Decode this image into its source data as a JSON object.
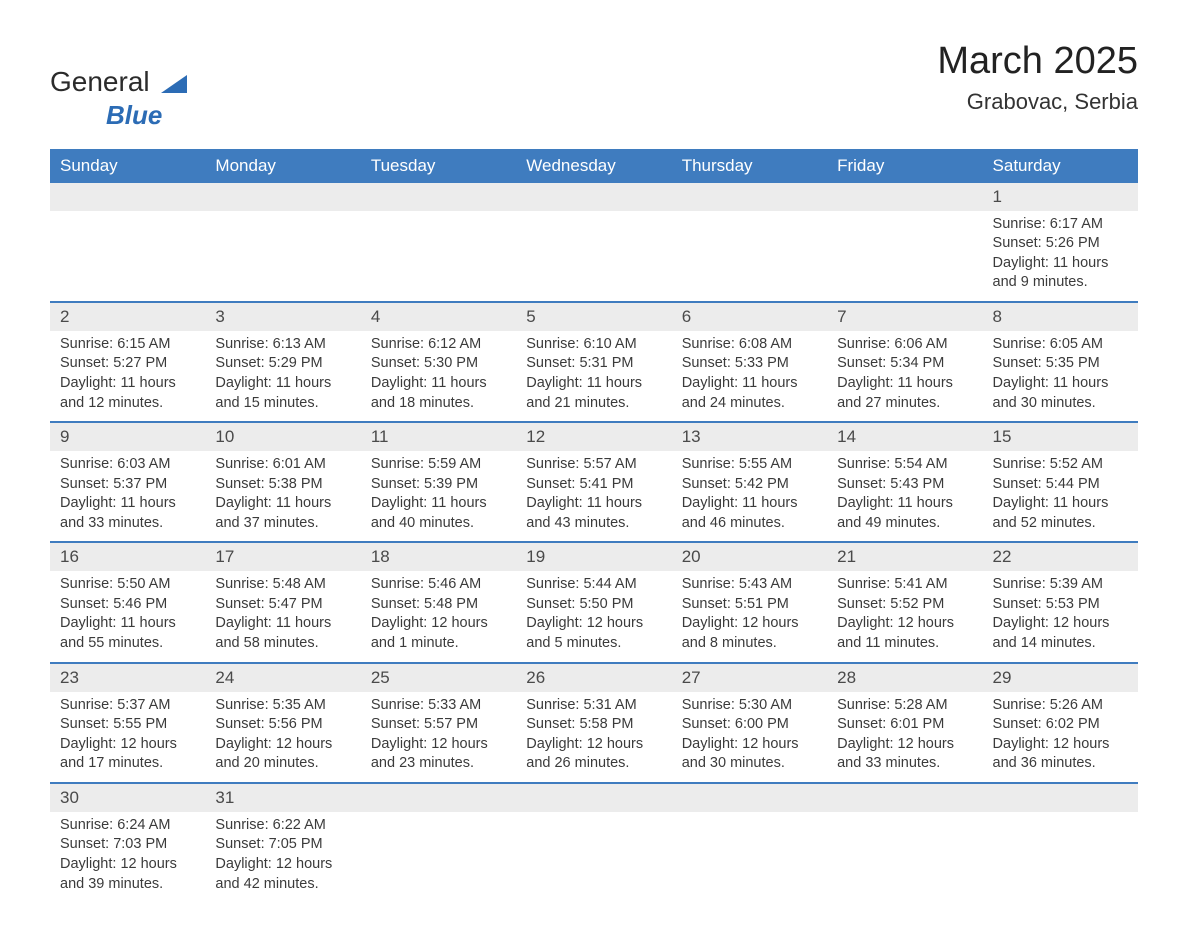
{
  "logo": {
    "text1": "General",
    "text2": "Blue"
  },
  "title": "March 2025",
  "location": "Grabovac, Serbia",
  "colors": {
    "header_bg": "#3f7cbf",
    "header_text": "#ffffff",
    "daynum_bg": "#ececec",
    "border": "#3f7cbf",
    "text": "#333333"
  },
  "weekdays": [
    "Sunday",
    "Monday",
    "Tuesday",
    "Wednesday",
    "Thursday",
    "Friday",
    "Saturday"
  ],
  "weeks": [
    [
      null,
      null,
      null,
      null,
      null,
      null,
      {
        "d": "1",
        "sr": "Sunrise: 6:17 AM",
        "ss": "Sunset: 5:26 PM",
        "dl1": "Daylight: 11 hours",
        "dl2": "and 9 minutes."
      }
    ],
    [
      {
        "d": "2",
        "sr": "Sunrise: 6:15 AM",
        "ss": "Sunset: 5:27 PM",
        "dl1": "Daylight: 11 hours",
        "dl2": "and 12 minutes."
      },
      {
        "d": "3",
        "sr": "Sunrise: 6:13 AM",
        "ss": "Sunset: 5:29 PM",
        "dl1": "Daylight: 11 hours",
        "dl2": "and 15 minutes."
      },
      {
        "d": "4",
        "sr": "Sunrise: 6:12 AM",
        "ss": "Sunset: 5:30 PM",
        "dl1": "Daylight: 11 hours",
        "dl2": "and 18 minutes."
      },
      {
        "d": "5",
        "sr": "Sunrise: 6:10 AM",
        "ss": "Sunset: 5:31 PM",
        "dl1": "Daylight: 11 hours",
        "dl2": "and 21 minutes."
      },
      {
        "d": "6",
        "sr": "Sunrise: 6:08 AM",
        "ss": "Sunset: 5:33 PM",
        "dl1": "Daylight: 11 hours",
        "dl2": "and 24 minutes."
      },
      {
        "d": "7",
        "sr": "Sunrise: 6:06 AM",
        "ss": "Sunset: 5:34 PM",
        "dl1": "Daylight: 11 hours",
        "dl2": "and 27 minutes."
      },
      {
        "d": "8",
        "sr": "Sunrise: 6:05 AM",
        "ss": "Sunset: 5:35 PM",
        "dl1": "Daylight: 11 hours",
        "dl2": "and 30 minutes."
      }
    ],
    [
      {
        "d": "9",
        "sr": "Sunrise: 6:03 AM",
        "ss": "Sunset: 5:37 PM",
        "dl1": "Daylight: 11 hours",
        "dl2": "and 33 minutes."
      },
      {
        "d": "10",
        "sr": "Sunrise: 6:01 AM",
        "ss": "Sunset: 5:38 PM",
        "dl1": "Daylight: 11 hours",
        "dl2": "and 37 minutes."
      },
      {
        "d": "11",
        "sr": "Sunrise: 5:59 AM",
        "ss": "Sunset: 5:39 PM",
        "dl1": "Daylight: 11 hours",
        "dl2": "and 40 minutes."
      },
      {
        "d": "12",
        "sr": "Sunrise: 5:57 AM",
        "ss": "Sunset: 5:41 PM",
        "dl1": "Daylight: 11 hours",
        "dl2": "and 43 minutes."
      },
      {
        "d": "13",
        "sr": "Sunrise: 5:55 AM",
        "ss": "Sunset: 5:42 PM",
        "dl1": "Daylight: 11 hours",
        "dl2": "and 46 minutes."
      },
      {
        "d": "14",
        "sr": "Sunrise: 5:54 AM",
        "ss": "Sunset: 5:43 PM",
        "dl1": "Daylight: 11 hours",
        "dl2": "and 49 minutes."
      },
      {
        "d": "15",
        "sr": "Sunrise: 5:52 AM",
        "ss": "Sunset: 5:44 PM",
        "dl1": "Daylight: 11 hours",
        "dl2": "and 52 minutes."
      }
    ],
    [
      {
        "d": "16",
        "sr": "Sunrise: 5:50 AM",
        "ss": "Sunset: 5:46 PM",
        "dl1": "Daylight: 11 hours",
        "dl2": "and 55 minutes."
      },
      {
        "d": "17",
        "sr": "Sunrise: 5:48 AM",
        "ss": "Sunset: 5:47 PM",
        "dl1": "Daylight: 11 hours",
        "dl2": "and 58 minutes."
      },
      {
        "d": "18",
        "sr": "Sunrise: 5:46 AM",
        "ss": "Sunset: 5:48 PM",
        "dl1": "Daylight: 12 hours",
        "dl2": "and 1 minute."
      },
      {
        "d": "19",
        "sr": "Sunrise: 5:44 AM",
        "ss": "Sunset: 5:50 PM",
        "dl1": "Daylight: 12 hours",
        "dl2": "and 5 minutes."
      },
      {
        "d": "20",
        "sr": "Sunrise: 5:43 AM",
        "ss": "Sunset: 5:51 PM",
        "dl1": "Daylight: 12 hours",
        "dl2": "and 8 minutes."
      },
      {
        "d": "21",
        "sr": "Sunrise: 5:41 AM",
        "ss": "Sunset: 5:52 PM",
        "dl1": "Daylight: 12 hours",
        "dl2": "and 11 minutes."
      },
      {
        "d": "22",
        "sr": "Sunrise: 5:39 AM",
        "ss": "Sunset: 5:53 PM",
        "dl1": "Daylight: 12 hours",
        "dl2": "and 14 minutes."
      }
    ],
    [
      {
        "d": "23",
        "sr": "Sunrise: 5:37 AM",
        "ss": "Sunset: 5:55 PM",
        "dl1": "Daylight: 12 hours",
        "dl2": "and 17 minutes."
      },
      {
        "d": "24",
        "sr": "Sunrise: 5:35 AM",
        "ss": "Sunset: 5:56 PM",
        "dl1": "Daylight: 12 hours",
        "dl2": "and 20 minutes."
      },
      {
        "d": "25",
        "sr": "Sunrise: 5:33 AM",
        "ss": "Sunset: 5:57 PM",
        "dl1": "Daylight: 12 hours",
        "dl2": "and 23 minutes."
      },
      {
        "d": "26",
        "sr": "Sunrise: 5:31 AM",
        "ss": "Sunset: 5:58 PM",
        "dl1": "Daylight: 12 hours",
        "dl2": "and 26 minutes."
      },
      {
        "d": "27",
        "sr": "Sunrise: 5:30 AM",
        "ss": "Sunset: 6:00 PM",
        "dl1": "Daylight: 12 hours",
        "dl2": "and 30 minutes."
      },
      {
        "d": "28",
        "sr": "Sunrise: 5:28 AM",
        "ss": "Sunset: 6:01 PM",
        "dl1": "Daylight: 12 hours",
        "dl2": "and 33 minutes."
      },
      {
        "d": "29",
        "sr": "Sunrise: 5:26 AM",
        "ss": "Sunset: 6:02 PM",
        "dl1": "Daylight: 12 hours",
        "dl2": "and 36 minutes."
      }
    ],
    [
      {
        "d": "30",
        "sr": "Sunrise: 6:24 AM",
        "ss": "Sunset: 7:03 PM",
        "dl1": "Daylight: 12 hours",
        "dl2": "and 39 minutes."
      },
      {
        "d": "31",
        "sr": "Sunrise: 6:22 AM",
        "ss": "Sunset: 7:05 PM",
        "dl1": "Daylight: 12 hours",
        "dl2": "and 42 minutes."
      },
      null,
      null,
      null,
      null,
      null
    ]
  ]
}
